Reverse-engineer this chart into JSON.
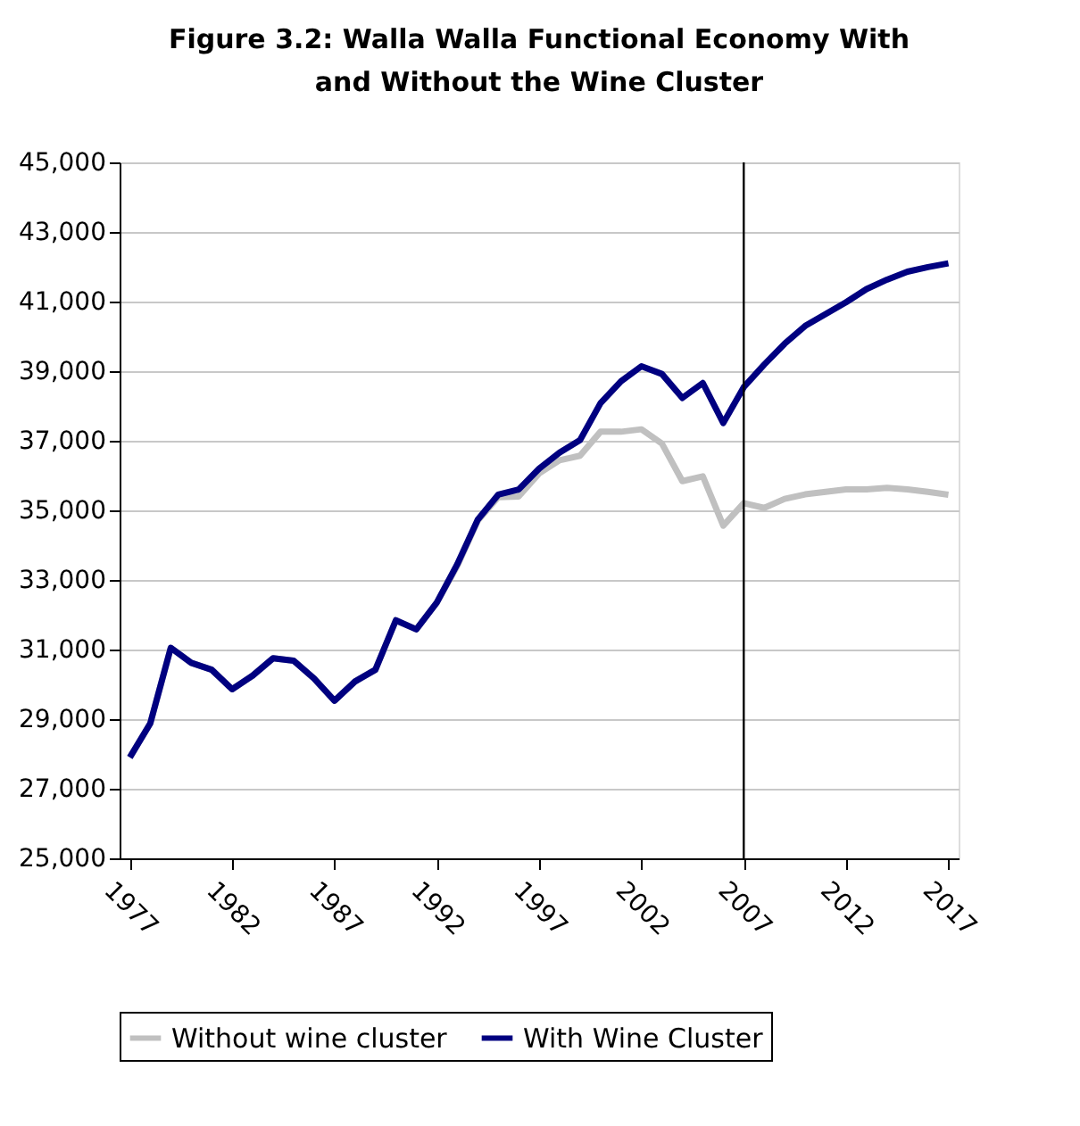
{
  "chart_data": {
    "type": "line",
    "title": "Figure 3.2: Walla Walla Functional Economy With and Without the Wine Cluster",
    "x": [
      1977,
      1978,
      1979,
      1980,
      1981,
      1982,
      1983,
      1984,
      1985,
      1986,
      1987,
      1988,
      1989,
      1990,
      1991,
      1992,
      1993,
      1994,
      1995,
      1996,
      1997,
      1998,
      1999,
      2000,
      2001,
      2002,
      2003,
      2004,
      2005,
      2006,
      2007,
      2008,
      2009,
      2010,
      2011,
      2012,
      2013,
      2014,
      2015,
      2016,
      2017
    ],
    "series": [
      {
        "name": "Without wine cluster",
        "color": "#c0c0c0",
        "values": [
          27900,
          28880,
          31050,
          30620,
          30420,
          29860,
          30250,
          30750,
          30680,
          30170,
          29530,
          30080,
          30420,
          31840,
          31580,
          32350,
          33400,
          34700,
          35380,
          35400,
          36060,
          36440,
          36570,
          37260,
          37260,
          37330,
          36920,
          35840,
          35980,
          34560,
          35210,
          35070,
          35330,
          35460,
          35530,
          35600,
          35600,
          35650,
          35600,
          35530,
          35450
        ]
      },
      {
        "name": "With Wine Cluster",
        "color": "#000080",
        "values": [
          27900,
          28880,
          31050,
          30620,
          30420,
          29860,
          30250,
          30750,
          30680,
          30170,
          29530,
          30080,
          30420,
          31840,
          31580,
          32350,
          33450,
          34730,
          35450,
          35600,
          36200,
          36660,
          37020,
          38080,
          38710,
          39140,
          38920,
          38230,
          38660,
          37510,
          38540,
          39190,
          39790,
          40300,
          40640,
          40980,
          41360,
          41630,
          41860,
          41990,
          42100
        ]
      }
    ],
    "xlim": [
      1976.5,
      2017.5
    ],
    "xticks": [
      1977,
      1982,
      1987,
      1992,
      1997,
      2002,
      2007,
      2012,
      2017
    ],
    "ylim": [
      25000,
      45000
    ],
    "yticks": [
      {
        "value": 25000,
        "label": "25,000"
      },
      {
        "value": 27000,
        "label": "27,000"
      },
      {
        "value": 29000,
        "label": "29,000"
      },
      {
        "value": 31000,
        "label": "31,000"
      },
      {
        "value": 33000,
        "label": "33,000"
      },
      {
        "value": 35000,
        "label": "35,000"
      },
      {
        "value": 37000,
        "label": "37,000"
      },
      {
        "value": 39000,
        "label": "39,000"
      },
      {
        "value": 41000,
        "label": "41,000"
      },
      {
        "value": 43000,
        "label": "43,000"
      },
      {
        "value": 45000,
        "label": "45,000"
      }
    ],
    "ref_lines": [
      {
        "axis": "x",
        "value": 2007,
        "color": "#000000"
      }
    ],
    "grid": "y",
    "legend": "bottom",
    "marker": "none",
    "line_style": "solid"
  }
}
